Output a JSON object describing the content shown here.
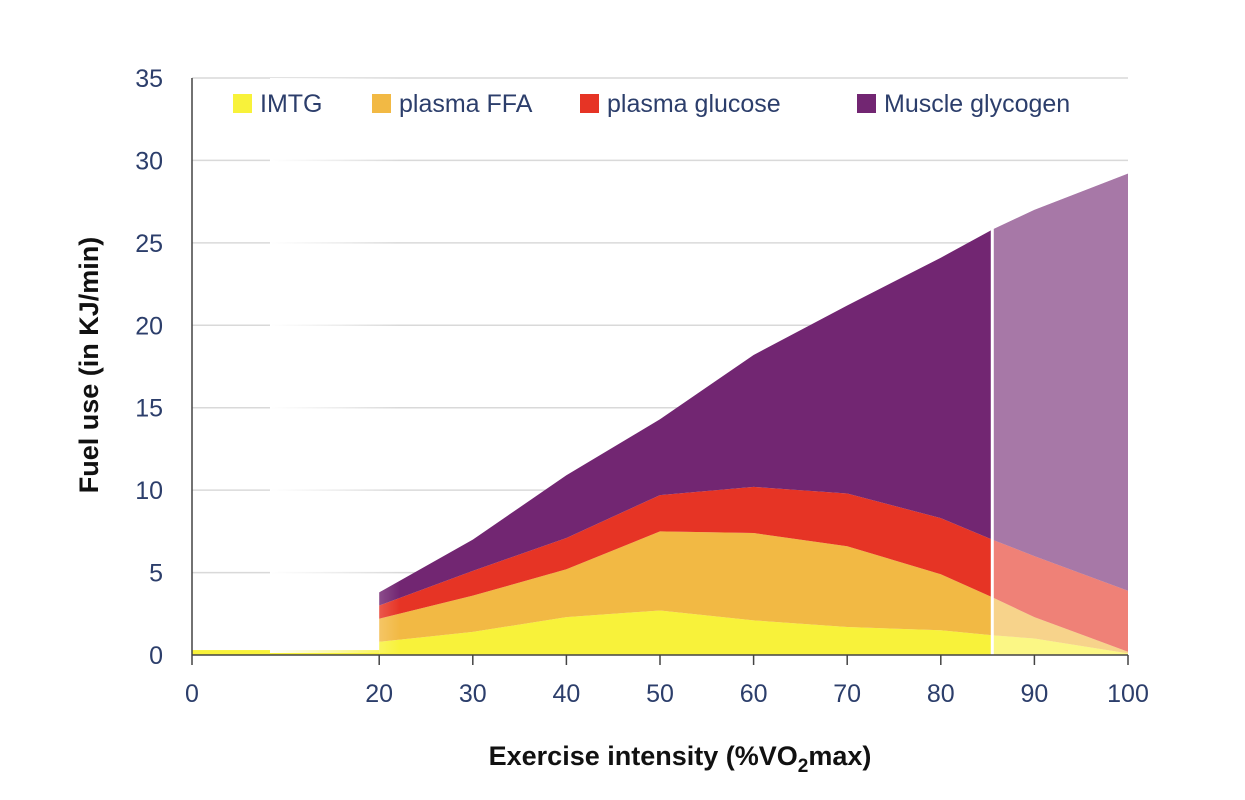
{
  "chart_data": {
    "type": "area",
    "title": "",
    "xlabel_parts": [
      "Exercise intensity (%VO",
      "2",
      "max)"
    ],
    "ylabel": "Fuel use (in KJ/min)",
    "xlim": [
      0,
      100
    ],
    "ylim": [
      0,
      35
    ],
    "x_ticks": [
      "0",
      "20",
      "30",
      "40",
      "50",
      "60",
      "70",
      "80",
      "90",
      "100"
    ],
    "y_ticks": [
      "0",
      "5",
      "10",
      "15",
      "20",
      "25",
      "30",
      "35"
    ],
    "grid": true,
    "legend_position": "top",
    "threshold_x": 85.5,
    "x": [
      20,
      30,
      40,
      50,
      60,
      70,
      80,
      85.5,
      90,
      100
    ],
    "series": [
      {
        "name": "IMTG",
        "color": "#f8f23a",
        "values": [
          0.8,
          1.4,
          2.3,
          2.7,
          2.1,
          1.7,
          1.5,
          1.2,
          1.0,
          0.1
        ]
      },
      {
        "name": "plasma FFA",
        "color": "#f2b944",
        "values": [
          1.4,
          2.2,
          2.9,
          4.8,
          5.3,
          4.9,
          3.4,
          2.3,
          1.3,
          0.1
        ]
      },
      {
        "name": "plasma glucose",
        "color": "#e63425",
        "values": [
          0.8,
          1.5,
          1.9,
          2.2,
          2.8,
          3.2,
          3.4,
          3.5,
          3.7,
          3.7
        ]
      },
      {
        "name": "Muscle glycogen",
        "color": "#722672",
        "values": [
          0.8,
          1.9,
          3.8,
          4.6,
          8.0,
          11.4,
          15.8,
          18.8,
          21.0,
          25.3
        ]
      }
    ]
  }
}
